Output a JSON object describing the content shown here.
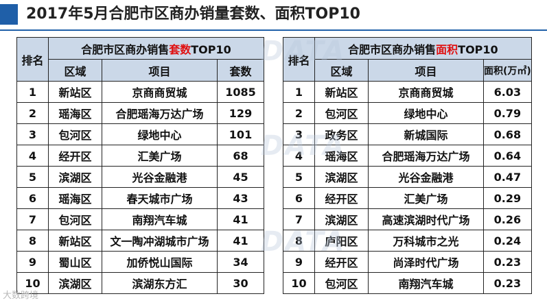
{
  "title": "2017年5月合肥市区商办销量套数、面积TOP10",
  "colors": {
    "accent": "#1f5fa8",
    "header_bg": "#cbd8e8",
    "highlight": "#e01010"
  },
  "left_table": {
    "rank_header": "排名",
    "group_header_pre": "合肥市区商办销售",
    "group_header_hl": "套数",
    "group_header_post": "TOP10",
    "col_region": "区域",
    "col_project": "项目",
    "col_value": "套数",
    "rows": [
      {
        "rank": "1",
        "region": "新站区",
        "project": "京商商贸城",
        "value": "1085"
      },
      {
        "rank": "2",
        "region": "瑶海区",
        "project": "合肥瑶海万达广场",
        "value": "129"
      },
      {
        "rank": "3",
        "region": "包河区",
        "project": "绿地中心",
        "value": "101"
      },
      {
        "rank": "4",
        "region": "经开区",
        "project": "汇美广场",
        "value": "68"
      },
      {
        "rank": "5",
        "region": "滨湖区",
        "project": "光谷金融港",
        "value": "45"
      },
      {
        "rank": "6",
        "region": "瑶海区",
        "project": "春天城市广场",
        "value": "43"
      },
      {
        "rank": "7",
        "region": "包河区",
        "project": "南翔汽车城",
        "value": "41"
      },
      {
        "rank": "8",
        "region": "新站区",
        "project": "文一陶冲湖城市广场",
        "value": "41"
      },
      {
        "rank": "9",
        "region": "蜀山区",
        "project": "加侨悦山国际",
        "value": "34"
      },
      {
        "rank": "10",
        "region": "滨湖区",
        "project": "滨湖东方汇",
        "value": "30"
      }
    ]
  },
  "right_table": {
    "rank_header": "排名",
    "group_header_pre": "合肥市区商办销售",
    "group_header_hl": "面积",
    "group_header_post": "TOP10",
    "col_region": "区域",
    "col_project": "项目",
    "col_value": "面积(万㎡)",
    "rows": [
      {
        "rank": "1",
        "region": "新站区",
        "project": "京商商贸城",
        "value": "6.03"
      },
      {
        "rank": "2",
        "region": "包河区",
        "project": "绿地中心",
        "value": "0.79"
      },
      {
        "rank": "3",
        "region": "政务区",
        "project": "新城国际",
        "value": "0.68"
      },
      {
        "rank": "4",
        "region": "瑶海区",
        "project": "合肥瑶海万达广场",
        "value": "0.64"
      },
      {
        "rank": "5",
        "region": "滨湖区",
        "project": "光谷金融港",
        "value": "0.47"
      },
      {
        "rank": "6",
        "region": "经开区",
        "project": "汇美广场",
        "value": "0.29"
      },
      {
        "rank": "7",
        "region": "滨湖区",
        "project": "高速滨湖时代广场",
        "value": "0.26"
      },
      {
        "rank": "8",
        "region": "庐阳区",
        "project": "万科城市之光",
        "value": "0.24"
      },
      {
        "rank": "9",
        "region": "经开区",
        "project": "尚泽时代广场",
        "value": "0.23"
      },
      {
        "rank": "10",
        "region": "包河区",
        "project": "南翔汽车城",
        "value": "0.23"
      }
    ]
  },
  "watermark": {
    "text": "DATA",
    "logo_text": "大数跨境"
  }
}
